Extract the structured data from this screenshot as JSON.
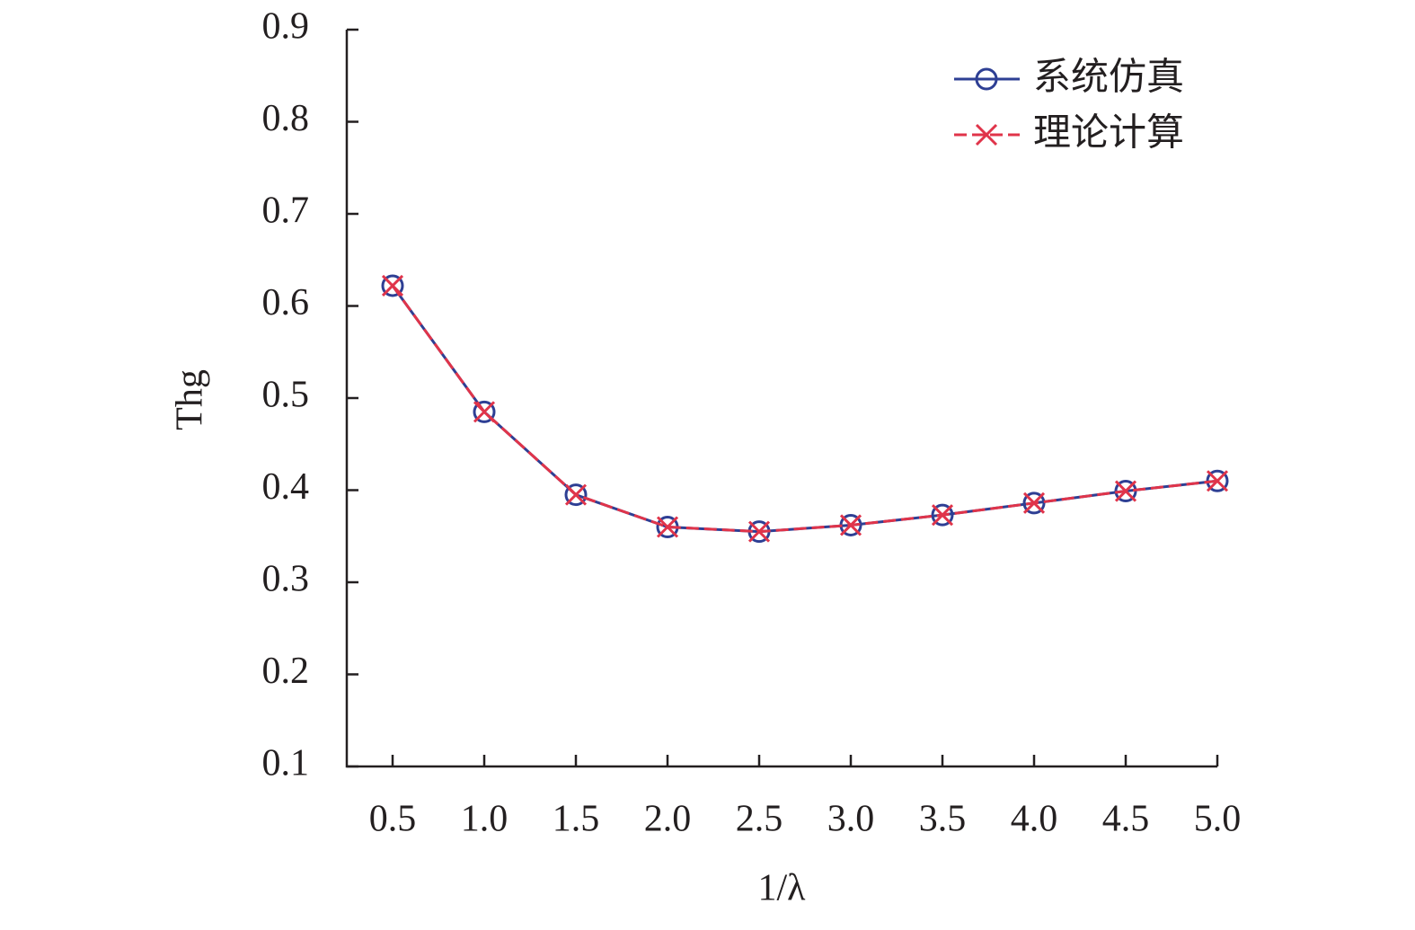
{
  "chart_data": {
    "type": "line",
    "x_label": "1/λ",
    "y_label": "Thg",
    "x": [
      0.5,
      1.0,
      1.5,
      2.0,
      2.5,
      3.0,
      3.5,
      4.0,
      4.5,
      5.0
    ],
    "series": [
      {
        "name": "系统仿真",
        "color": "#2e3f94",
        "marker": "circle",
        "dash": false,
        "values": [
          0.622,
          0.485,
          0.395,
          0.36,
          0.355,
          0.362,
          0.373,
          0.386,
          0.399,
          0.41
        ]
      },
      {
        "name": "理论计算",
        "color": "#e0344a",
        "marker": "x",
        "dash": true,
        "values": [
          0.622,
          0.485,
          0.395,
          0.36,
          0.355,
          0.362,
          0.373,
          0.386,
          0.399,
          0.41
        ]
      }
    ],
    "xlim": [
      0.25,
      5.0
    ],
    "xticks": [
      {
        "value": 0.5,
        "label": "0.5"
      },
      {
        "value": 1,
        "label": "1.0"
      },
      {
        "value": 1.5,
        "label": "1.5"
      },
      {
        "value": 2,
        "label": "2.0"
      },
      {
        "value": 2.5,
        "label": "2.5"
      },
      {
        "value": 3,
        "label": "3.0"
      },
      {
        "value": 3.5,
        "label": "3.5"
      },
      {
        "value": 4,
        "label": "4.0"
      },
      {
        "value": 4.5,
        "label": "4.5"
      },
      {
        "value": 5,
        "label": "5.0"
      }
    ],
    "ylim": [
      0.1,
      0.9
    ],
    "yticks": [
      0.1,
      0.2,
      0.3,
      0.4,
      0.5,
      0.6,
      0.7,
      0.8,
      0.9
    ],
    "grid": false,
    "legend": "upper right"
  }
}
